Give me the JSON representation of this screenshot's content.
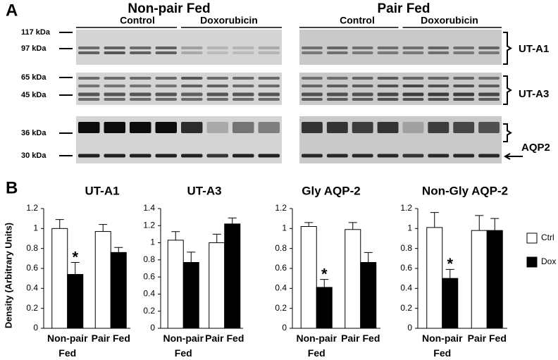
{
  "panel_a": {
    "label": "A",
    "groups": [
      {
        "title": "Non-pair Fed",
        "conditions": [
          "Control",
          "Doxorubicin"
        ]
      },
      {
        "title": "Pair Fed",
        "conditions": [
          "Control",
          "Doxorubicin"
        ]
      }
    ],
    "markers": [
      "117 kDa",
      "97 kDa",
      "65 kDa",
      "45 kDa",
      "36 kDa",
      "30 kDa"
    ],
    "proteins": [
      "UT-A1",
      "UT-A3",
      "AQP2"
    ]
  },
  "panel_b": {
    "label": "B"
  },
  "chart_data": [
    {
      "type": "bar",
      "title": "UT-A1",
      "ylabel": "Density (Arbitrary Units)",
      "categories": [
        "Non-pair Fed",
        "Pair Fed"
      ],
      "ylim": [
        0,
        1.2
      ],
      "yticks": [
        0,
        0.2,
        0.4,
        0.6,
        0.8,
        1,
        1.2
      ],
      "series": [
        {
          "color": "#ffffff",
          "values": [
            1.0,
            0.97
          ],
          "errors": [
            0.09,
            0.07
          ]
        },
        {
          "color": "#000000",
          "values": [
            0.54,
            0.76
          ],
          "errors": [
            0.12,
            0.05
          ]
        }
      ],
      "annotations": [
        {
          "text": "*",
          "series": 1,
          "index": 0
        }
      ]
    },
    {
      "type": "bar",
      "title": "UT-A3",
      "categories": [
        "Non-pair Fed",
        "Pair Fed"
      ],
      "ylim": [
        0,
        1.4
      ],
      "yticks": [
        0,
        0.2,
        0.4,
        0.6,
        0.8,
        1,
        1.2,
        1.4
      ],
      "series": [
        {
          "color": "#ffffff",
          "values": [
            1.03,
            1.0
          ],
          "errors": [
            0.1,
            0.1
          ]
        },
        {
          "color": "#000000",
          "values": [
            0.77,
            1.22
          ],
          "errors": [
            0.12,
            0.07
          ]
        }
      ],
      "annotations": []
    },
    {
      "type": "bar",
      "title": "Gly AQP-2",
      "categories": [
        "Non-pair Fed",
        "Pair Fed"
      ],
      "ylim": [
        0,
        1.2
      ],
      "yticks": [
        0,
        0.2,
        0.4,
        0.6,
        0.8,
        1,
        1.2
      ],
      "series": [
        {
          "color": "#ffffff",
          "values": [
            1.02,
            0.99
          ],
          "errors": [
            0.04,
            0.07
          ]
        },
        {
          "color": "#000000",
          "values": [
            0.41,
            0.66
          ],
          "errors": [
            0.08,
            0.1
          ]
        }
      ],
      "annotations": [
        {
          "text": "*",
          "series": 1,
          "index": 0
        }
      ]
    },
    {
      "type": "bar",
      "title": "Non-Gly AQP-2",
      "categories": [
        "Non-pair Fed",
        "Pair Fed"
      ],
      "ylim": [
        0,
        1.2
      ],
      "yticks": [
        0,
        0.2,
        0.4,
        0.6,
        0.8,
        1,
        1.2
      ],
      "series": [
        {
          "name": "Ctrl",
          "color": "#ffffff",
          "values": [
            1.01,
            0.98
          ],
          "errors": [
            0.15,
            0.15
          ]
        },
        {
          "name": "Dox",
          "color": "#000000",
          "values": [
            0.5,
            0.98
          ],
          "errors": [
            0.09,
            0.12
          ]
        }
      ],
      "annotations": [
        {
          "text": "*",
          "series": 1,
          "index": 0
        }
      ]
    }
  ]
}
